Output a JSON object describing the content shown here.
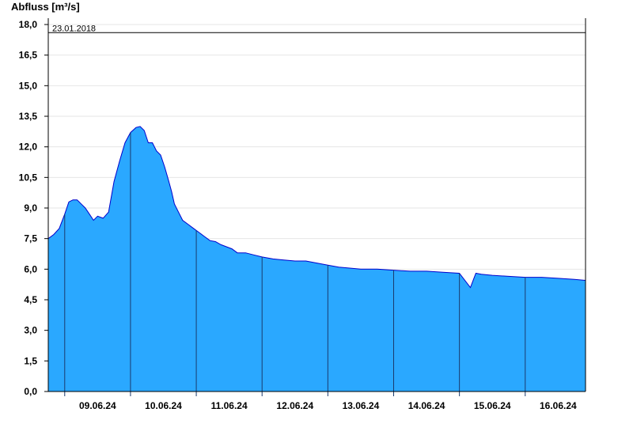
{
  "chart_data": {
    "type": "area",
    "ylabel": "Abfluss [m³/s]",
    "xlabel": "",
    "ylim": [
      0,
      18
    ],
    "xlim": [
      "2024-06-08T18:00",
      "2024-06-16T22:00"
    ],
    "grid": true,
    "fill_color": "#2aa8ff",
    "line_color": "#0000cc",
    "reference_line": {
      "label": "23.01.2018",
      "value": 17.6
    },
    "y_ticks": [
      "0,0",
      "1,5",
      "3,0",
      "4,5",
      "6,0",
      "7,5",
      "9,0",
      "10,5",
      "12,0",
      "13,5",
      "15,0",
      "16,5",
      "18,0"
    ],
    "y_tick_values": [
      0,
      1.5,
      3,
      4.5,
      6,
      7.5,
      9,
      10.5,
      12,
      13.5,
      15,
      16.5,
      18
    ],
    "x_ticks": [
      "09.06.24",
      "10.06.24",
      "11.06.24",
      "12.06.24",
      "13.06.24",
      "14.06.24",
      "15.06.24",
      "16.06.24"
    ],
    "x_tick_positions": [
      "2024-06-09T12:00",
      "2024-06-10T12:00",
      "2024-06-11T12:00",
      "2024-06-12T12:00",
      "2024-06-13T12:00",
      "2024-06-14T12:00",
      "2024-06-15T12:00",
      "2024-06-16T12:00"
    ],
    "day_boundaries": [
      "2024-06-09T00:00",
      "2024-06-10T00:00",
      "2024-06-11T00:00",
      "2024-06-12T00:00",
      "2024-06-13T00:00",
      "2024-06-14T00:00",
      "2024-06-15T00:00",
      "2024-06-16T00:00"
    ],
    "series": [
      {
        "x": [
          "2024-06-08T18:00",
          "2024-06-08T20:00",
          "2024-06-08T22:00",
          "2024-06-09T00:00",
          "2024-06-09T01:30",
          "2024-06-09T03:00",
          "2024-06-09T04:30",
          "2024-06-09T06:00",
          "2024-06-09T07:30",
          "2024-06-09T09:00",
          "2024-06-09T10:30",
          "2024-06-09T12:00",
          "2024-06-09T14:00",
          "2024-06-09T16:00",
          "2024-06-09T18:00",
          "2024-06-09T20:00",
          "2024-06-09T22:00",
          "2024-06-10T00:00",
          "2024-06-10T02:00",
          "2024-06-10T03:30",
          "2024-06-10T05:00",
          "2024-06-10T06:30",
          "2024-06-10T08:00",
          "2024-06-10T09:30",
          "2024-06-10T11:00",
          "2024-06-10T12:30",
          "2024-06-10T14:00",
          "2024-06-10T15:00",
          "2024-06-10T16:00",
          "2024-06-10T17:30",
          "2024-06-10T19:00",
          "2024-06-10T21:00",
          "2024-06-10T23:00",
          "2024-06-11T01:00",
          "2024-06-11T03:00",
          "2024-06-11T05:00",
          "2024-06-11T07:00",
          "2024-06-11T09:00",
          "2024-06-11T11:00",
          "2024-06-11T13:00",
          "2024-06-11T15:00",
          "2024-06-11T18:00",
          "2024-06-11T21:00",
          "2024-06-12T00:00",
          "2024-06-12T04:00",
          "2024-06-12T08:00",
          "2024-06-12T12:00",
          "2024-06-12T16:00",
          "2024-06-12T20:00",
          "2024-06-13T00:00",
          "2024-06-13T04:00",
          "2024-06-13T08:00",
          "2024-06-13T12:00",
          "2024-06-13T18:00",
          "2024-06-14T00:00",
          "2024-06-14T06:00",
          "2024-06-14T12:00",
          "2024-06-14T18:00",
          "2024-06-15T00:00",
          "2024-06-15T04:00",
          "2024-06-15T06:00",
          "2024-06-15T08:00",
          "2024-06-15T12:00",
          "2024-06-15T18:00",
          "2024-06-16T00:00",
          "2024-06-16T06:00",
          "2024-06-16T12:00",
          "2024-06-16T18:00",
          "2024-06-16T22:00"
        ],
        "y": [
          7.5,
          7.7,
          8.0,
          8.7,
          9.3,
          9.4,
          9.4,
          9.2,
          9.0,
          8.7,
          8.4,
          8.6,
          8.5,
          8.8,
          10.3,
          11.3,
          12.2,
          12.7,
          12.95,
          13.0,
          12.8,
          12.2,
          12.2,
          11.8,
          11.6,
          11.0,
          10.3,
          9.8,
          9.2,
          8.8,
          8.4,
          8.2,
          8.0,
          7.8,
          7.6,
          7.4,
          7.35,
          7.2,
          7.1,
          7.0,
          6.8,
          6.8,
          6.7,
          6.6,
          6.5,
          6.45,
          6.4,
          6.4,
          6.3,
          6.2,
          6.1,
          6.05,
          6.0,
          6.0,
          5.95,
          5.9,
          5.9,
          5.85,
          5.8,
          5.1,
          5.8,
          5.75,
          5.7,
          5.65,
          5.6,
          5.6,
          5.55,
          5.5,
          5.45
        ]
      }
    ]
  }
}
